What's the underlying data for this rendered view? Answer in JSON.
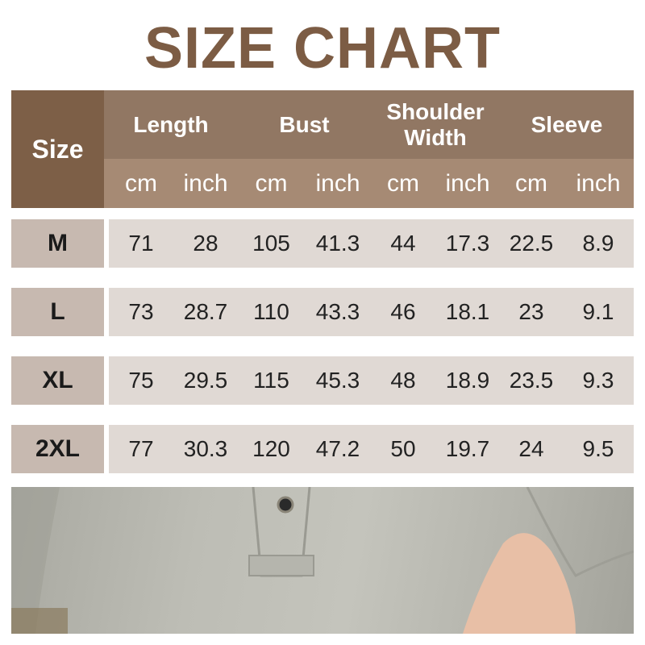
{
  "title": "SIZE CHART",
  "header": {
    "size": "Size",
    "groups": [
      "Length",
      "Bust",
      "Shoulder Width",
      "Sleeve"
    ],
    "units": [
      "cm",
      "inch",
      "cm",
      "inch",
      "cm",
      "inch",
      "cm",
      "inch"
    ]
  },
  "rows": [
    {
      "size": "M",
      "values": [
        "71",
        "28",
        "105",
        "41.3",
        "44",
        "17.3",
        "22.5",
        "8.9"
      ]
    },
    {
      "size": "L",
      "values": [
        "73",
        "28.7",
        "110",
        "43.3",
        "46",
        "18.1",
        "23",
        "9.1"
      ]
    },
    {
      "size": "XL",
      "values": [
        "75",
        "29.5",
        "115",
        "45.3",
        "48",
        "18.9",
        "23.5",
        "9.3"
      ]
    },
    {
      "size": "2XL",
      "values": [
        "77",
        "30.3",
        "120",
        "47.2",
        "50",
        "19.7",
        "24",
        "9.5"
      ]
    }
  ],
  "colors": {
    "title": "#7c5c44",
    "size_header": "#7d5f47",
    "group_header": "#917763",
    "unit_header": "#a68a74",
    "size_cell": "#c7b9b0",
    "data_cell": "#e0d9d4"
  }
}
